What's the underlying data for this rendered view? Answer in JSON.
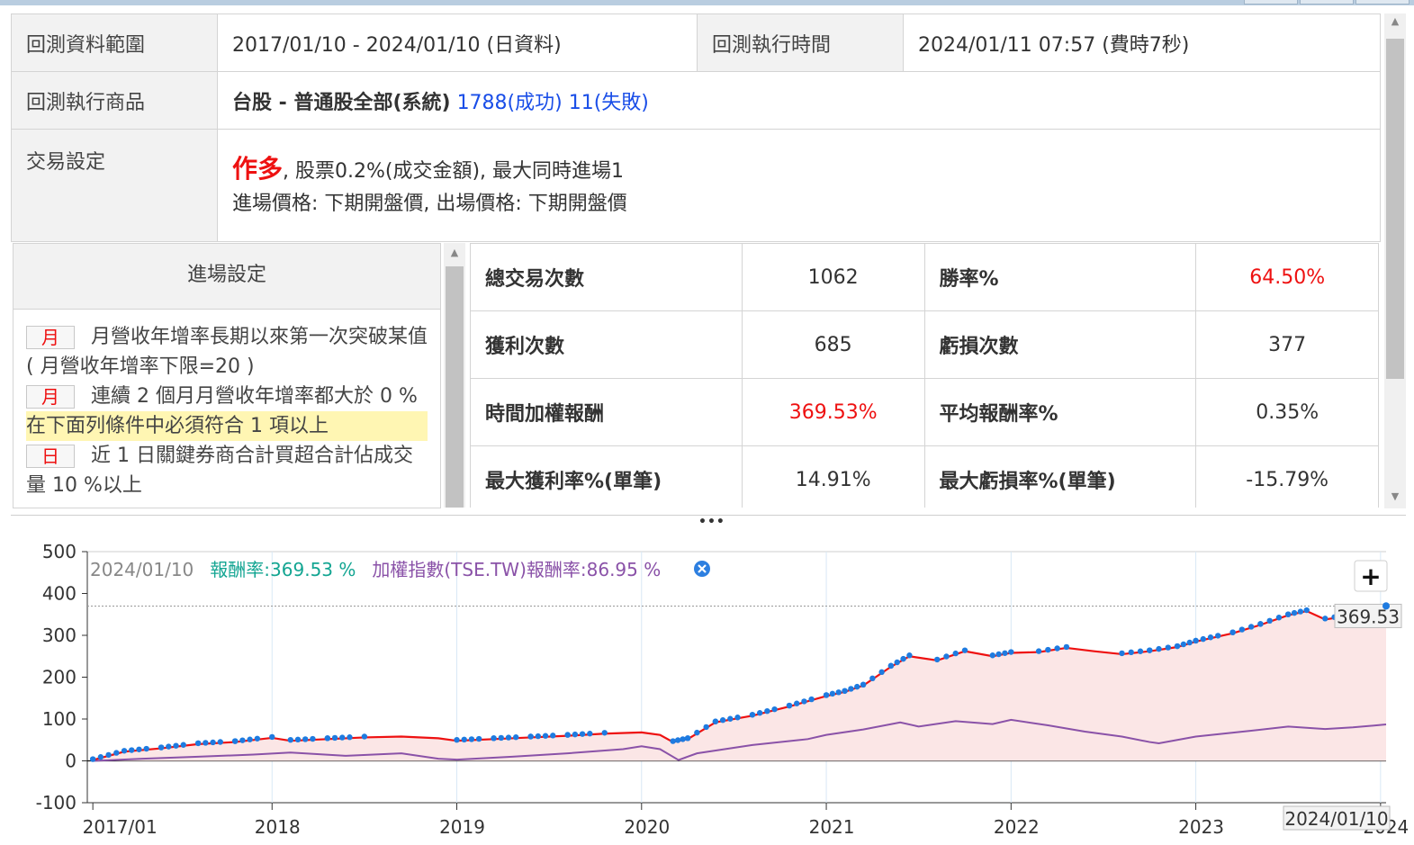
{
  "info": {
    "range_label": "回測資料範圍",
    "range_value": "2017/01/10 - 2024/01/10 (日資料)",
    "exec_time_label": "回測執行時間",
    "exec_time_value": "2024/01/11 07:57 (費時7秒)",
    "product_label": "回測執行商品",
    "product_prefix": "台股 - 普通股全部(系統)",
    "product_success": "1788(成功)",
    "product_fail": "11(失敗)",
    "trade_label": "交易設定",
    "trade_direction": "作多",
    "trade_fee": ", 股票0.2%(成交金額), 最大同時進場1",
    "trade_prices": "進場價格: 下期開盤價, 出場價格: 下期開盤價"
  },
  "entry": {
    "title": "進場設定",
    "conditions": [
      {
        "tag": "月",
        "text": "月營收年增率長期以來第一次突破某值( 月營收年增率下限=20 )"
      },
      {
        "tag": "月",
        "text": "連續 2 個月月營收年增率都大於 0 %"
      }
    ],
    "highlight": "在下面列條件中必須符合 1 項以上",
    "sub_conditions": [
      {
        "tag": "日",
        "text": "近 1 日關鍵券商合計買超合計佔成交量 10 %以上"
      }
    ]
  },
  "stats": {
    "rows": [
      {
        "k1": "總交易次數",
        "v1": "1062",
        "k2": "勝率%",
        "v2": "64.50%",
        "v1_red": false,
        "v2_red": true
      },
      {
        "k1": "獲利次數",
        "v1": "685",
        "k2": "虧損次數",
        "v2": "377",
        "v1_red": false,
        "v2_red": false
      },
      {
        "k1": "時間加權報酬",
        "v1": "369.53%",
        "k2": "平均報酬率%",
        "v2": "0.35%",
        "v1_red": true,
        "v2_red": false
      },
      {
        "k1": "最大獲利率%(單筆)",
        "v1": "14.91%",
        "k2": "最大虧損率%(單筆)",
        "v2": "-15.79%",
        "v1_red": false,
        "v2_red": false
      }
    ]
  },
  "chart_data": {
    "type": "line",
    "legend": {
      "date": "2024/01/10",
      "series1_label": "報酬率:",
      "series1_value": "369.53 %",
      "series2_label": "加權指數(TSE.TW)報酬率:",
      "series2_value": "86.95 %"
    },
    "y_ticks": [
      "500",
      "400",
      "300",
      "200",
      "100",
      "0",
      "-100"
    ],
    "ylim": [
      -100,
      500
    ],
    "x_ticks": [
      "2017/01",
      "2018",
      "2019",
      "2020",
      "2021",
      "2022",
      "2023",
      "2024"
    ],
    "end_value_label": "369.53",
    "end_date_label": "2024/01/10",
    "zoom_button": "+",
    "colors": {
      "strategy": "#ee1111",
      "trade_dots": "#1e7be0",
      "index": "#8a52a8",
      "fill": "#fbe6e6",
      "legend_teal": "#13a592",
      "legend_purple": "#8a52a8"
    },
    "series": [
      {
        "name": "報酬率",
        "x": [
          2017.03,
          2017.2,
          2017.4,
          2017.6,
          2017.8,
          2018.0,
          2018.1,
          2018.3,
          2018.5,
          2018.7,
          2018.9,
          2019.0,
          2019.2,
          2019.4,
          2019.6,
          2019.8,
          2020.0,
          2020.1,
          2020.17,
          2020.25,
          2020.4,
          2020.6,
          2020.8,
          2021.0,
          2021.1,
          2021.2,
          2021.35,
          2021.45,
          2021.6,
          2021.75,
          2021.9,
          2022.0,
          2022.15,
          2022.3,
          2022.45,
          2022.6,
          2022.75,
          2022.9,
          2023.0,
          2023.2,
          2023.35,
          2023.5,
          2023.6,
          2023.7,
          2023.85,
          2024.0,
          2024.03
        ],
        "values": [
          2,
          22,
          30,
          40,
          45,
          55,
          48,
          52,
          56,
          58,
          54,
          48,
          52,
          56,
          60,
          65,
          68,
          62,
          45,
          52,
          92,
          108,
          130,
          155,
          165,
          180,
          225,
          250,
          240,
          262,
          250,
          258,
          260,
          270,
          262,
          255,
          262,
          272,
          285,
          305,
          325,
          348,
          358,
          338,
          348,
          362,
          370
        ]
      },
      {
        "name": "加權指數(TSE.TW)報酬率",
        "x": [
          2017.03,
          2017.3,
          2017.6,
          2017.9,
          2018.1,
          2018.4,
          2018.7,
          2018.9,
          2019.0,
          2019.3,
          2019.6,
          2019.9,
          2020.0,
          2020.1,
          2020.2,
          2020.3,
          2020.6,
          2020.9,
          2021.0,
          2021.2,
          2021.4,
          2021.5,
          2021.7,
          2021.9,
          2022.0,
          2022.2,
          2022.4,
          2022.6,
          2022.75,
          2022.8,
          2023.0,
          2023.3,
          2023.5,
          2023.7,
          2023.85,
          2024.03
        ],
        "values": [
          0,
          5,
          10,
          15,
          20,
          12,
          18,
          5,
          3,
          10,
          18,
          28,
          35,
          28,
          2,
          18,
          38,
          52,
          62,
          75,
          92,
          82,
          95,
          88,
          98,
          85,
          70,
          58,
          45,
          42,
          58,
          72,
          82,
          76,
          80,
          87
        ]
      }
    ]
  }
}
